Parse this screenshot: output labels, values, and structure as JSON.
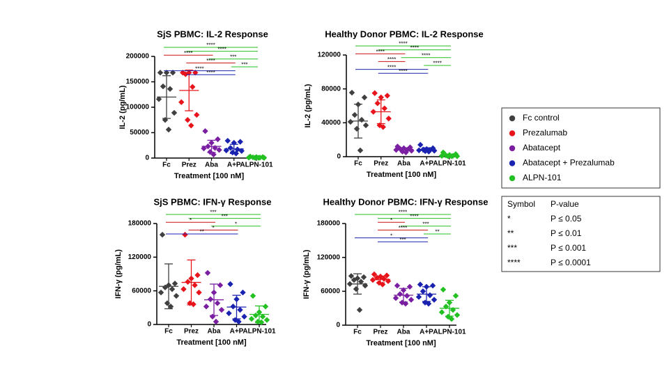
{
  "chart_data": [
    {
      "type": "dot",
      "title": "SjS PBMC: IL-2 Response",
      "ylabel": "IL-2 (pg/mL)",
      "xlabel": "Treatment [100 nM]",
      "categories": [
        "Fc",
        "Prez",
        "Aba",
        "A+P",
        "ALPN-101"
      ],
      "colors": [
        "#404040",
        "#e8141c",
        "#7a1fa2",
        "#1a22b0",
        "#22c022"
      ],
      "points": [
        [
          168000,
          168000,
          168000,
          141000,
          136000,
          116000,
          89000,
          75000,
          56000
        ],
        [
          168000,
          168000,
          168000,
          165000,
          140000,
          110000,
          85000,
          75000,
          64000
        ],
        [
          53000,
          37000,
          30000,
          23000,
          20000,
          19000,
          16000,
          12000,
          7000
        ],
        [
          34000,
          32000,
          30000,
          20000,
          17000,
          15000,
          14000,
          11000,
          9000
        ],
        [
          3000,
          2000,
          2000,
          1500,
          1000,
          1000,
          500,
          500,
          500
        ]
      ],
      "means": [
        120000,
        133000,
        23000,
        18000,
        1000
      ],
      "sd": [
        42000,
        40000,
        12000,
        9000,
        1000
      ],
      "ylim": [
        0,
        200000
      ],
      "yticks": [
        0,
        50000,
        100000,
        150000,
        200000
      ],
      "significance": [
        {
          "from": 0,
          "to": 4,
          "label": "****",
          "color": "#22c022"
        },
        {
          "from": 1,
          "to": 4,
          "label": "****",
          "color": "#22c022"
        },
        {
          "from": 0,
          "to": 2,
          "label": "****",
          "color": "#c81010"
        },
        {
          "from": 2,
          "to": 4,
          "label": "***",
          "color": "#22c022"
        },
        {
          "from": 1,
          "to": 3,
          "label": "****",
          "color": "#c81010"
        },
        {
          "from": 3,
          "to": 4,
          "label": "***",
          "color": "#22c022"
        },
        {
          "from": 0,
          "to": 3,
          "label": "****",
          "color": "#1a22b0"
        },
        {
          "from": 1,
          "to": 3,
          "label": "****",
          "color": "#1a22b0"
        }
      ]
    },
    {
      "type": "dot",
      "title": "Healthy Donor PBMC: IL-2 Response",
      "ylabel": "IL-2 (pg/mL)",
      "xlabel": "Treatment [100 nM]",
      "categories": [
        "Fc",
        "Prez",
        "Aba",
        "A+P",
        "ALPN-101"
      ],
      "colors": [
        "#404040",
        "#e8141c",
        "#7a1fa2",
        "#1a22b0",
        "#22c022"
      ],
      "points": [
        [
          75600,
          69900,
          61600,
          49300,
          43500,
          41100,
          37000,
          32900,
          7400
        ],
        [
          75000,
          72000,
          70000,
          63000,
          57000,
          53000,
          45000,
          37000,
          35000
        ],
        [
          12000,
          11000,
          10000,
          9000,
          8000,
          8000,
          7000,
          6000,
          5000
        ],
        [
          14000,
          10000,
          9000,
          8500,
          8000,
          7500,
          7000,
          6500,
          6000
        ],
        [
          5000,
          3000,
          2000,
          1500,
          1000,
          1000,
          500,
          500,
          500
        ]
      ],
      "means": [
        42000,
        53000,
        8500,
        8000,
        1500
      ],
      "sd": [
        20000,
        14000,
        2000,
        2500,
        1500
      ],
      "ylim": [
        0,
        120000
      ],
      "yticks": [
        0,
        40000,
        80000,
        120000
      ],
      "significance": [
        {
          "from": 0,
          "to": 4,
          "label": "****",
          "color": "#22c022"
        },
        {
          "from": 1,
          "to": 4,
          "label": "****",
          "color": "#22c022"
        },
        {
          "from": 0,
          "to": 2,
          "label": "****",
          "color": "#c81010"
        },
        {
          "from": 2,
          "to": 4,
          "label": "****",
          "color": "#22c022"
        },
        {
          "from": 1,
          "to": 2,
          "label": "****",
          "color": "#c81010"
        },
        {
          "from": 3,
          "to": 4,
          "label": "****",
          "color": "#22c022"
        },
        {
          "from": 0,
          "to": 3,
          "label": "****",
          "color": "#1a22b0"
        },
        {
          "from": 1,
          "to": 3,
          "label": "****",
          "color": "#1a22b0"
        }
      ]
    },
    {
      "type": "dot",
      "title": "SjS PBMC: IFN-γ Response",
      "ylabel": "IFN-γ (pg/mL)",
      "xlabel": "Treatment [100 nM]",
      "categories": [
        "Fc",
        "Prez",
        "Aba",
        "A+P",
        "ALPN-101"
      ],
      "colors": [
        "#404040",
        "#e8141c",
        "#7a1fa2",
        "#1a22b0",
        "#22c022"
      ],
      "points": [
        [
          160000,
          73000,
          70000,
          66000,
          63000,
          57000,
          51000,
          38000,
          32000
        ],
        [
          160000,
          88000,
          82000,
          76000,
          70000,
          63000,
          57000,
          38000,
          36000
        ],
        [
          92000,
          70000,
          57000,
          45000,
          38000,
          32000,
          26000,
          14000,
          5000
        ],
        [
          72000,
          57000,
          45000,
          32000,
          26000,
          20000,
          14000,
          8000,
          5000
        ],
        [
          51000,
          32000,
          22000,
          16000,
          14000,
          10000,
          8000,
          5000,
          4000
        ]
      ],
      "means": [
        68000,
        75000,
        44000,
        31000,
        18000
      ],
      "sd": [
        40000,
        40000,
        28000,
        21000,
        15000
      ],
      "ylim": [
        0,
        180000
      ],
      "yticks": [
        0,
        60000,
        120000,
        180000
      ],
      "significance": [
        {
          "from": 0,
          "to": 4,
          "label": "***",
          "color": "#22c022"
        },
        {
          "from": 1,
          "to": 4,
          "label": "***",
          "color": "#22c022"
        },
        {
          "from": 0,
          "to": 2,
          "label": "*",
          "color": "#c81010"
        },
        {
          "from": 2,
          "to": 4,
          "label": "*",
          "color": "#22c022"
        },
        {
          "from": 1,
          "to": 3,
          "label": "*",
          "color": "#c81010"
        },
        {
          "from": 0,
          "to": 3,
          "label": "**",
          "color": "#1a22b0"
        }
      ]
    },
    {
      "type": "dot",
      "title": "Healthy Donor  PBMC: IFN-γ Response",
      "ylabel": "IFN-γ (pg/mL)",
      "xlabel": "Treatment [100 nM]",
      "categories": [
        "Fc",
        "Prez",
        "Aba",
        "A+P",
        "ALPN-101"
      ],
      "colors": [
        "#404040",
        "#e8141c",
        "#7a1fa2",
        "#1a22b0",
        "#22c022"
      ],
      "points": [
        [
          87000,
          85000,
          83000,
          80000,
          77000,
          73000,
          70000,
          64000,
          27000
        ],
        [
          90000,
          88000,
          86000,
          84000,
          82000,
          80000,
          78000,
          75000,
          72000
        ],
        [
          70000,
          68000,
          62000,
          55000,
          52000,
          48000,
          45000,
          40000,
          38000
        ],
        [
          72000,
          70000,
          68000,
          60000,
          53000,
          50000,
          45000,
          40000,
          38000
        ],
        [
          63000,
          52000,
          40000,
          33000,
          27000,
          23000,
          18000,
          15000,
          11000
        ]
      ],
      "means": [
        73000,
        81000,
        53000,
        55000,
        30000
      ],
      "sd": [
        18000,
        6000,
        12000,
        13000,
        14000
      ],
      "ylim": [
        0,
        180000
      ],
      "yticks": [
        0,
        60000,
        120000,
        180000
      ],
      "significance": [
        {
          "from": 0,
          "to": 4,
          "label": "****",
          "color": "#22c022"
        },
        {
          "from": 1,
          "to": 4,
          "label": "****",
          "color": "#22c022"
        },
        {
          "from": 1,
          "to": 2,
          "label": "*",
          "color": "#c81010"
        },
        {
          "from": 2,
          "to": 4,
          "label": "***",
          "color": "#22c022"
        },
        {
          "from": 1,
          "to": 3,
          "label": "****",
          "color": "#c81010"
        },
        {
          "from": 3,
          "to": 4,
          "label": "**",
          "color": "#22c022"
        },
        {
          "from": 0,
          "to": 3,
          "label": "*",
          "color": "#1a22b0"
        },
        {
          "from": 1,
          "to": 3,
          "label": "***",
          "color": "#1a22b0"
        }
      ]
    }
  ],
  "legend": [
    {
      "name": "Fc control",
      "color": "#404040"
    },
    {
      "name": "Prezalumab",
      "color": "#e8141c"
    },
    {
      "name": "Abatacept",
      "color": "#7a1fa2"
    },
    {
      "name": "Abatacept + Prezalumab",
      "color": "#1a22b0"
    },
    {
      "name": "ALPN-101",
      "color": "#22c022"
    }
  ],
  "significance_key": {
    "header": [
      "Symbol",
      "P-value"
    ],
    "rows": [
      [
        "*",
        "P ≤ 0.05"
      ],
      [
        "**",
        "P ≤ 0.01"
      ],
      [
        "***",
        "P ≤ 0.001"
      ],
      [
        "****",
        "P ≤ 0.0001"
      ]
    ]
  }
}
